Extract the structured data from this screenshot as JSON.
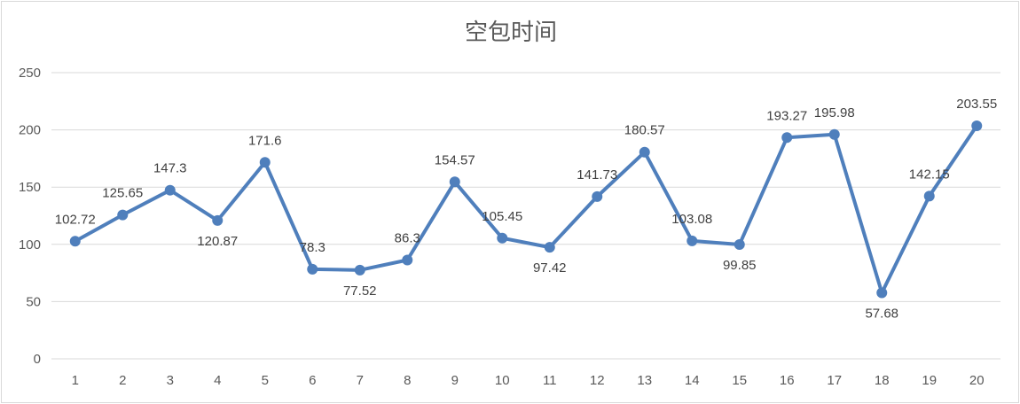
{
  "chart_data": {
    "type": "line",
    "title": "空包时间",
    "xlabel": "",
    "ylabel": "",
    "categories": [
      "1",
      "2",
      "3",
      "4",
      "5",
      "6",
      "7",
      "8",
      "9",
      "10",
      "11",
      "12",
      "13",
      "14",
      "15",
      "16",
      "17",
      "18",
      "19",
      "20"
    ],
    "series": [
      {
        "values": [
          102.72,
          125.65,
          147.3,
          120.87,
          171.6,
          78.3,
          77.52,
          86.3,
          154.57,
          105.45,
          97.42,
          141.73,
          180.57,
          103.08,
          99.85,
          193.27,
          195.98,
          57.68,
          142.15,
          203.55
        ],
        "data_labels": [
          "102.72",
          "125.65",
          "147.3",
          "120.87",
          "171.6",
          "78.3",
          "77.52",
          "86.3",
          "154.57",
          "105.45",
          "97.42",
          "141.73",
          "180.57",
          "103.08",
          "99.85",
          "193.27",
          "195.98",
          "57.68",
          "142.15",
          "203.55"
        ],
        "color": "#4f7fbc"
      }
    ],
    "yticks": [
      "0",
      "50",
      "100",
      "150",
      "200",
      "250"
    ],
    "ylim": [
      0,
      250
    ],
    "grid": true,
    "legend": "none"
  }
}
